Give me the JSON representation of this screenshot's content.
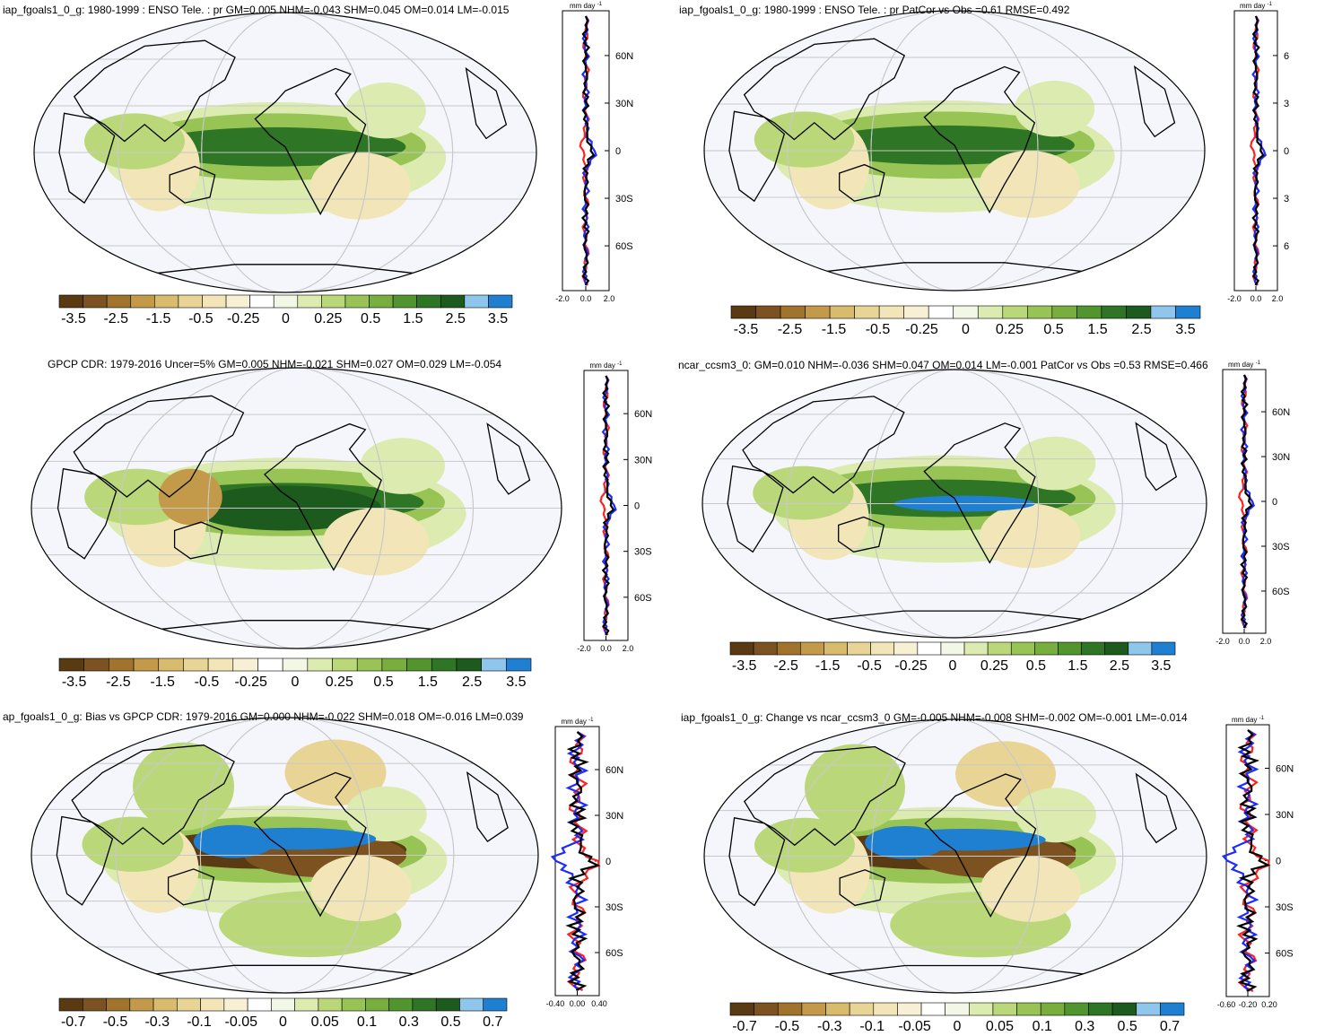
{
  "units": "mm day",
  "units_exp": "-1",
  "colors": {
    "ocean_bg": "#f4f6fb",
    "grid": "#c8c8c8",
    "coast": "#000000",
    "line_red": "#ff2020",
    "line_blue": "#1d2bff",
    "line_black": "#000000"
  },
  "palette": [
    "#5a3a12",
    "#7b5220",
    "#a0742c",
    "#c29a4a",
    "#d9bb6e",
    "#e8d596",
    "#f2e6b8",
    "#f7f0d4",
    "#ffffff",
    "#f2f7e6",
    "#dcebb0",
    "#bad87a",
    "#98c456",
    "#77ae3e",
    "#52942e",
    "#2f7526",
    "#1d5a1e",
    "#8fc6ec",
    "#1f7fd0"
  ],
  "panels": [
    {
      "title": "iap_fgoals1_0_g: 1980-1999 : ENSO Tele. : pr GM=0.005 NHM=-0.043 SHM=0.045 OM=0.014 LM=-0.015",
      "cbar_labels": [
        "-3.5",
        "-2.5",
        "-1.5",
        "-0.5",
        "-0.25",
        "0",
        "0.25",
        "0.5",
        "1.5",
        "2.5",
        "3.5"
      ],
      "lat_labels": [
        "60N",
        "30N",
        "0",
        "30S",
        "60S"
      ],
      "x_labels": [
        "-2.0",
        "0.0",
        "2.0"
      ]
    },
    {
      "title": "iap_fgoals1_0_g: 1980-1999 : ENSO Tele. : pr PatCor vs Obs =0.61 RMSE=0.492",
      "cbar_labels": [
        "-3.5",
        "-2.5",
        "-1.5",
        "-0.5",
        "-0.25",
        "0",
        "0.25",
        "0.5",
        "1.5",
        "2.5",
        "3.5"
      ],
      "lat_labels": [
        "6",
        "3",
        "0",
        "3",
        "6"
      ],
      "x_labels": [
        "-2.0",
        "0.0",
        "2.0"
      ]
    },
    {
      "title": "GPCP CDR: 1979-2016 Uncer=5% GM=0.005 NHM=-0.021 SHM=0.027 OM=0.029 LM=-0.054",
      "cbar_labels": [
        "-3.5",
        "-2.5",
        "-1.5",
        "-0.5",
        "-0.25",
        "0",
        "0.25",
        "0.5",
        "1.5",
        "2.5",
        "3.5"
      ],
      "lat_labels": [
        "60N",
        "30N",
        "0",
        "30S",
        "60S"
      ],
      "x_labels": [
        "-2.0",
        "0.0",
        "2.0"
      ]
    },
    {
      "title": "ncar_ccsm3_0: GM=0.010 NHM=-0.036 SHM=0.047 OM=0.014 LM=-0.001 PatCor vs Obs =0.53 RMSE=0.466",
      "cbar_labels": [
        "-3.5",
        "-2.5",
        "-1.5",
        "-0.5",
        "-0.25",
        "0",
        "0.25",
        "0.5",
        "1.5",
        "2.5",
        "3.5"
      ],
      "lat_labels": [
        "60N",
        "30N",
        "0",
        "30S",
        "60S"
      ],
      "x_labels": [
        "-2.0",
        "0.0",
        "2.0"
      ]
    },
    {
      "title": "ap_fgoals1_0_g: Bias vs GPCP CDR: 1979-2016 GM=0.000 NHM=-0.022 SHM=0.018 OM=-0.016 LM=0.039",
      "cbar_labels": [
        "-0.7",
        "-0.5",
        "-0.3",
        "-0.1",
        "-0.05",
        "0",
        "0.05",
        "0.1",
        "0.3",
        "0.5",
        "0.7"
      ],
      "lat_labels": [
        "60N",
        "30N",
        "0",
        "30S",
        "60S"
      ],
      "x_labels": [
        "-0.40",
        "0.00",
        "0.40"
      ]
    },
    {
      "title": "iap_fgoals1_0_g: Change vs ncar_ccsm3_0 GM=-0.005 NHM=-0.008 SHM=-0.002 OM=-0.001 LM=-0.014",
      "cbar_labels": [
        "-0.7",
        "-0.5",
        "-0.3",
        "-0.1",
        "-0.05",
        "0",
        "0.05",
        "0.1",
        "0.3",
        "0.5",
        "0.7"
      ],
      "lat_labels": [
        "60N",
        "30N",
        "0",
        "30S",
        "60S"
      ],
      "x_labels": [
        "-0.60",
        "-0.20",
        "0.20"
      ]
    }
  ]
}
